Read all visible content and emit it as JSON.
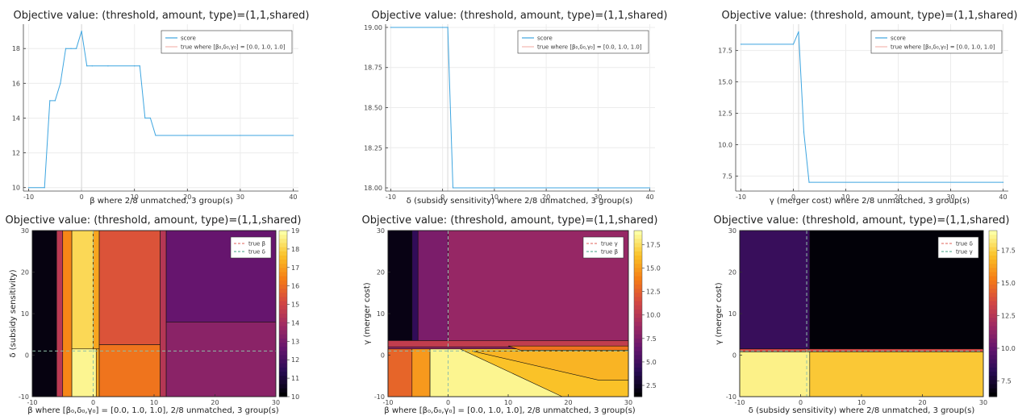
{
  "chart_data": [
    {
      "id": "p1",
      "type": "line",
      "title": "Objective value: (threshold, amount, type)=(1,1,shared)",
      "xlabel": "β where 2/8 unmatched, 3 group(s)",
      "ylabel": "",
      "xlim": [
        -11,
        41
      ],
      "ylim": [
        9.8,
        19.4
      ],
      "xticks": [
        -10,
        0,
        10,
        20,
        30,
        40
      ],
      "yticks": [
        10,
        12,
        14,
        16,
        18
      ],
      "ytick_labels": [
        "10",
        "12",
        "14",
        "16",
        "18"
      ],
      "vline": 0,
      "legend": [
        "score",
        "true where [β₀,δ₀,γ₀] = [0.0, 1.0, 1.0]"
      ],
      "legend_colors": [
        "#3da5e0",
        "#f4b8b0"
      ],
      "series": [
        {
          "name": "score",
          "color": "#3da5e0",
          "x": [
            -10,
            -7,
            -6,
            -5,
            -4,
            -3,
            -2,
            -1,
            0,
            1,
            2,
            5,
            10,
            11,
            12,
            13,
            14,
            20,
            30,
            40
          ],
          "y": [
            10,
            10,
            15,
            15,
            16,
            18,
            18,
            18,
            19,
            17,
            17,
            17,
            17,
            17,
            14,
            14,
            13,
            13,
            13,
            13
          ]
        }
      ]
    },
    {
      "id": "p2",
      "type": "line",
      "title": "Objective value: (threshold, amount, type)=(1,1,shared)",
      "xlabel": "δ (subsidy sensitivity) where 2/8 unmatched, 3 group(s)",
      "ylabel": "",
      "xlim": [
        -11,
        41
      ],
      "ylim": [
        17.98,
        19.02
      ],
      "xticks": [
        -10,
        0,
        10,
        20,
        30,
        40
      ],
      "yticks": [
        18.0,
        18.25,
        18.5,
        18.75,
        19.0
      ],
      "ytick_labels": [
        "18.00",
        "18.25",
        "18.50",
        "18.75",
        "19.00"
      ],
      "vline": 1,
      "legend": [
        "score",
        "true where [β₀,δ₀,γ₀] = [0.0, 1.0, 1.0]"
      ],
      "legend_colors": [
        "#3da5e0",
        "#f4b8b0"
      ],
      "series": [
        {
          "name": "score",
          "color": "#3da5e0",
          "x": [
            -10,
            0,
            1,
            2,
            40
          ],
          "y": [
            19,
            19,
            19,
            18,
            18
          ]
        }
      ]
    },
    {
      "id": "p3",
      "type": "line",
      "title": "Objective value: (threshold, amount, type)=(1,1,shared)",
      "xlabel": "γ (merger cost) where 2/8 unmatched, 3 group(s)",
      "ylabel": "",
      "xlim": [
        -11,
        41
      ],
      "ylim": [
        6.3,
        19.6
      ],
      "xticks": [
        -10,
        0,
        10,
        20,
        30,
        40
      ],
      "yticks": [
        7.5,
        10,
        12.5,
        15,
        17.5
      ],
      "ytick_labels": [
        "7.5",
        "10.0",
        "12.5",
        "15.0",
        "17.5"
      ],
      "vline": 1,
      "legend": [
        "score",
        "true where [β₀,δ₀,γ₀] = [0.0, 1.0, 1.0]"
      ],
      "legend_colors": [
        "#3da5e0",
        "#f4b8b0"
      ],
      "series": [
        {
          "name": "score",
          "color": "#3da5e0",
          "x": [
            -10,
            0,
            1,
            2,
            3,
            40
          ],
          "y": [
            18,
            18,
            19,
            11,
            7,
            7
          ]
        }
      ]
    },
    {
      "id": "p4",
      "type": "heatmap",
      "title": "Objective value: (threshold, amount, type)=(1,1,shared)",
      "xlabel": "β where [β₀,δ₀,γ₀] = [0.0, 1.0, 1.0], 2/8 unmatched, 3 group(s)",
      "ylabel": "δ (subsidy sensitivity)",
      "xlim": [
        -10,
        30
      ],
      "ylim": [
        -10,
        30
      ],
      "xticks": [
        -10,
        0,
        10,
        20,
        30
      ],
      "yticks": [
        -10,
        0,
        10,
        20,
        30
      ],
      "colorbar": {
        "min": 10,
        "max": 19,
        "ticks": [
          10,
          11,
          12,
          13,
          14,
          15,
          16,
          17,
          18,
          19
        ]
      },
      "true_lines": {
        "v": 0,
        "h": 1
      },
      "legend": [
        "true β",
        "true δ"
      ],
      "legend_colors": [
        "#e8807a",
        "#66b39a"
      ],
      "regions": [
        {
          "x": [
            -10,
            -6
          ],
          "y": [
            -10,
            30
          ],
          "value": 10.2
        },
        {
          "x": [
            -6,
            -5
          ],
          "y": [
            -10,
            30
          ],
          "value": 14.5
        },
        {
          "x": [
            -5,
            -3.5
          ],
          "y": [
            -10,
            30
          ],
          "value": 16.6
        },
        {
          "x": [
            -3.5,
            0
          ],
          "y": [
            1.5,
            30
          ],
          "value": 18.2
        },
        {
          "x": [
            -3.5,
            0.5
          ],
          "y": [
            -10,
            1.5
          ],
          "value": 18.8
        },
        {
          "x": [
            0,
            1
          ],
          "y": [
            1.5,
            30
          ],
          "value": 17.2
        },
        {
          "x": [
            0.5,
            1
          ],
          "y": [
            -10,
            1.5
          ],
          "value": 17.2
        },
        {
          "x": [
            1,
            11
          ],
          "y": [
            2.5,
            30
          ],
          "value": 15.4
        },
        {
          "x": [
            1,
            11
          ],
          "y": [
            -10,
            2.5
          ],
          "value": 16.2
        },
        {
          "x": [
            11,
            12
          ],
          "y": [
            -10,
            30
          ],
          "value": 14.4
        },
        {
          "x": [
            12,
            30
          ],
          "y": [
            -10,
            8
          ],
          "value": 13.4
        },
        {
          "x": [
            12,
            30
          ],
          "y": [
            8,
            30
          ],
          "value": 12.6
        }
      ]
    },
    {
      "id": "p5",
      "type": "heatmap",
      "title": "Objective value: (threshold, amount, type)=(1,1,shared)",
      "xlabel": "β where [β₀,δ₀,γ₀] = [0.0, 1.0, 1.0], 2/8 unmatched, 3 group(s)",
      "ylabel": "γ (merger cost)",
      "xlim": [
        -10,
        30
      ],
      "ylim": [
        -10,
        30
      ],
      "xticks": [
        -10,
        0,
        10,
        20,
        30
      ],
      "yticks": [
        -10,
        0,
        10,
        20,
        30
      ],
      "colorbar": {
        "min": 1.3,
        "max": 19,
        "ticks": [
          2.5,
          5.0,
          7.5,
          10.0,
          12.5,
          15.0,
          17.5
        ],
        "tick_labels": [
          "2.5",
          "5.0",
          "7.5",
          "10.0",
          "12.5",
          "15.0",
          "17.5"
        ]
      },
      "true_lines": {
        "v": 0,
        "h": 1
      },
      "legend": [
        "true γ",
        "true β"
      ],
      "legend_colors": [
        "#e8807a",
        "#66b39a"
      ],
      "regions": [
        {
          "x": [
            -10,
            30
          ],
          "y": [
            -10,
            30
          ],
          "value": 8.5
        },
        {
          "x": [
            -10,
            -6
          ],
          "y": [
            3.5,
            30
          ],
          "value": 1.8
        },
        {
          "x": [
            -6,
            -5
          ],
          "y": [
            3.5,
            30
          ],
          "value": 4.2
        },
        {
          "x": [
            -5,
            0
          ],
          "y": [
            3.5,
            30
          ],
          "value": 7.3
        },
        {
          "x": [
            -10,
            30
          ],
          "y": [
            2,
            3.5
          ],
          "value": 10.5
        },
        {
          "x": [
            -10,
            -6
          ],
          "y": [
            -10,
            1.5
          ],
          "value": 12.8
        },
        {
          "x": [
            -6,
            -3
          ],
          "y": [
            -10,
            1.5
          ],
          "value": 15.0
        },
        {
          "x": [
            -3,
            30
          ],
          "y": [
            -10,
            1.5
          ],
          "value": 16.5
        }
      ],
      "polys": [
        {
          "points": [
            [
              -3,
              1.5
            ],
            [
              -3,
              -10
            ],
            [
              19,
              -10
            ],
            [
              2,
              1.5
            ]
          ],
          "value": 18.6
        },
        {
          "points": [
            [
              4,
              1
            ],
            [
              30,
              1
            ],
            [
              30,
              -6
            ],
            [
              25,
              -6
            ]
          ],
          "value": 16.0
        },
        {
          "points": [
            [
              10,
              2.2
            ],
            [
              30,
              2.2
            ],
            [
              30,
              1.2
            ],
            [
              12,
              1.2
            ]
          ],
          "value": 13.5
        }
      ]
    },
    {
      "id": "p6",
      "type": "heatmap",
      "title": "Objective value: (threshold, amount, type)=(1,1,shared)",
      "xlabel": "δ (subsidy sensitivity) where 2/8 unmatched, 3 group(s)",
      "ylabel": "γ (merger cost)",
      "xlim": [
        -10,
        30
      ],
      "ylim": [
        -10,
        30
      ],
      "xticks": [
        -10,
        0,
        10,
        20,
        30
      ],
      "yticks": [
        -10,
        0,
        10,
        20,
        30
      ],
      "colorbar": {
        "min": 6.3,
        "max": 19,
        "ticks": [
          7.5,
          10.0,
          12.5,
          15.0,
          17.5
        ],
        "tick_labels": [
          "7.5",
          "10.0",
          "12.5",
          "15.0",
          "17.5"
        ]
      },
      "true_lines": {
        "v": 1,
        "h": 1
      },
      "legend": [
        "true δ",
        "true γ"
      ],
      "legend_colors": [
        "#e8807a",
        "#66b39a"
      ],
      "regions": [
        {
          "x": [
            -10,
            1.5
          ],
          "y": [
            1.5,
            30
          ],
          "value": 8.6
        },
        {
          "x": [
            1.5,
            30
          ],
          "y": [
            1.5,
            30
          ],
          "value": 6.4
        },
        {
          "x": [
            -10,
            30
          ],
          "y": [
            0.8,
            1.5
          ],
          "value": 13.5
        },
        {
          "x": [
            -10,
            1.5
          ],
          "y": [
            -10,
            0.8
          ],
          "value": 18.6
        },
        {
          "x": [
            1.5,
            30
          ],
          "y": [
            -10,
            0.8
          ],
          "value": 17.4
        }
      ]
    }
  ]
}
